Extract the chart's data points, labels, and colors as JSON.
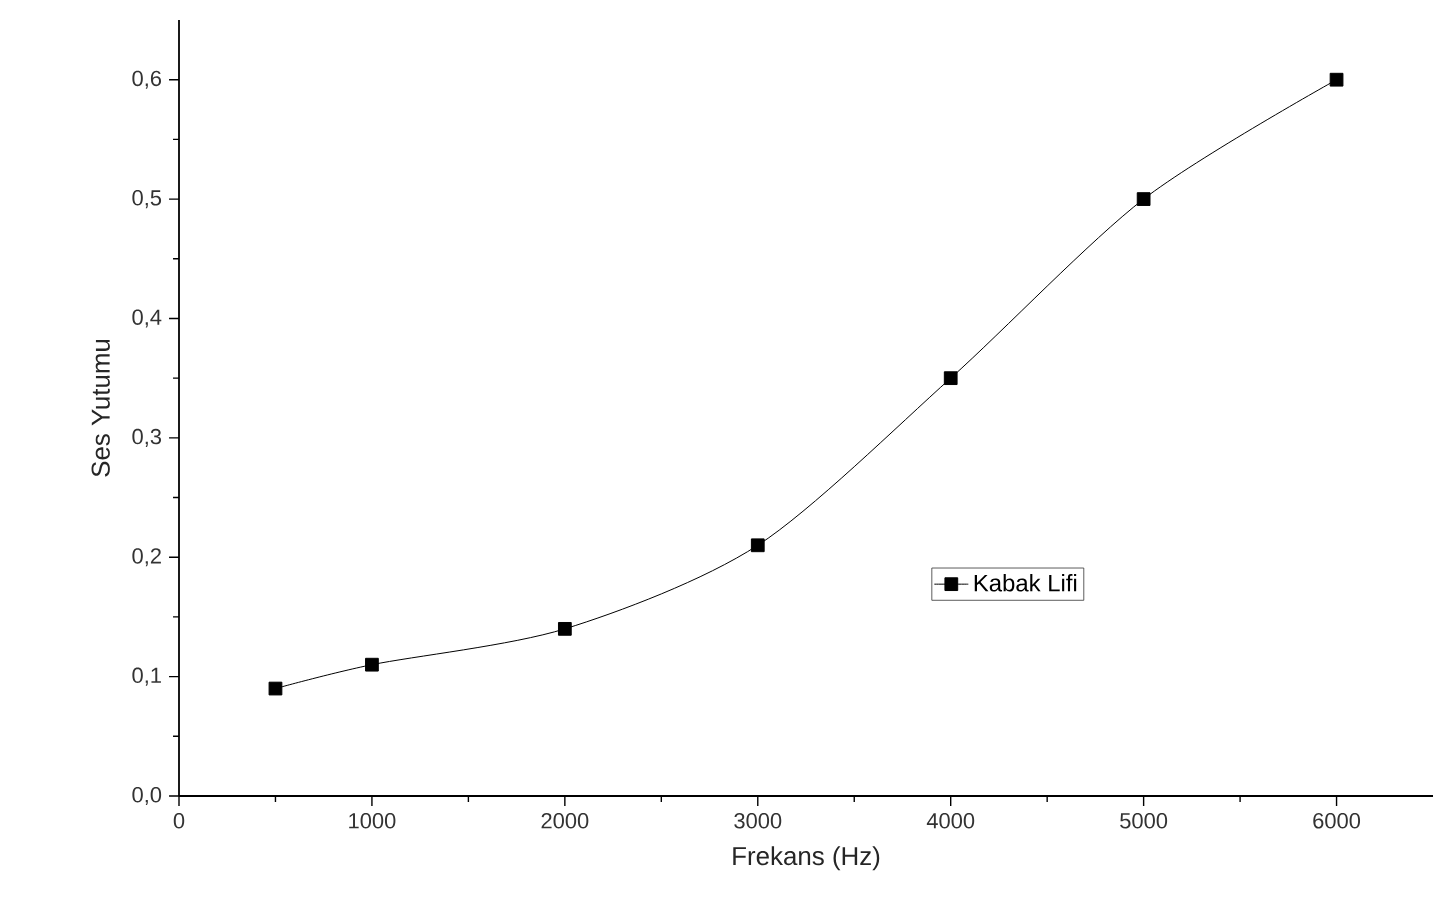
{
  "chart_data": {
    "type": "line",
    "xlabel": "Frekans (Hz)",
    "ylabel": "Ses Yutumu",
    "x": [
      500,
      1000,
      2000,
      3000,
      4000,
      5000,
      6000
    ],
    "series": [
      {
        "name": "Kabak Lifi",
        "color": "#000000",
        "values": [
          0.09,
          0.11,
          0.14,
          0.21,
          0.35,
          0.5,
          0.6
        ]
      }
    ],
    "xlim": [
      0,
      6500
    ],
    "xticks": [
      0,
      1000,
      2000,
      3000,
      4000,
      5000,
      6000
    ],
    "ylim": [
      0,
      0.65
    ],
    "yticks": [
      {
        "value": 0,
        "label": "0,0"
      },
      {
        "value": 0.1,
        "label": "0,1"
      },
      {
        "value": 0.2,
        "label": "0,2"
      },
      {
        "value": 0.3,
        "label": "0,3"
      },
      {
        "value": 0.4,
        "label": "0,4"
      },
      {
        "value": 0.5,
        "label": "0,5"
      },
      {
        "value": 0.6,
        "label": "0,6"
      }
    ],
    "marker": "square",
    "line_style": "solid",
    "legend": "right",
    "grid": false
  }
}
